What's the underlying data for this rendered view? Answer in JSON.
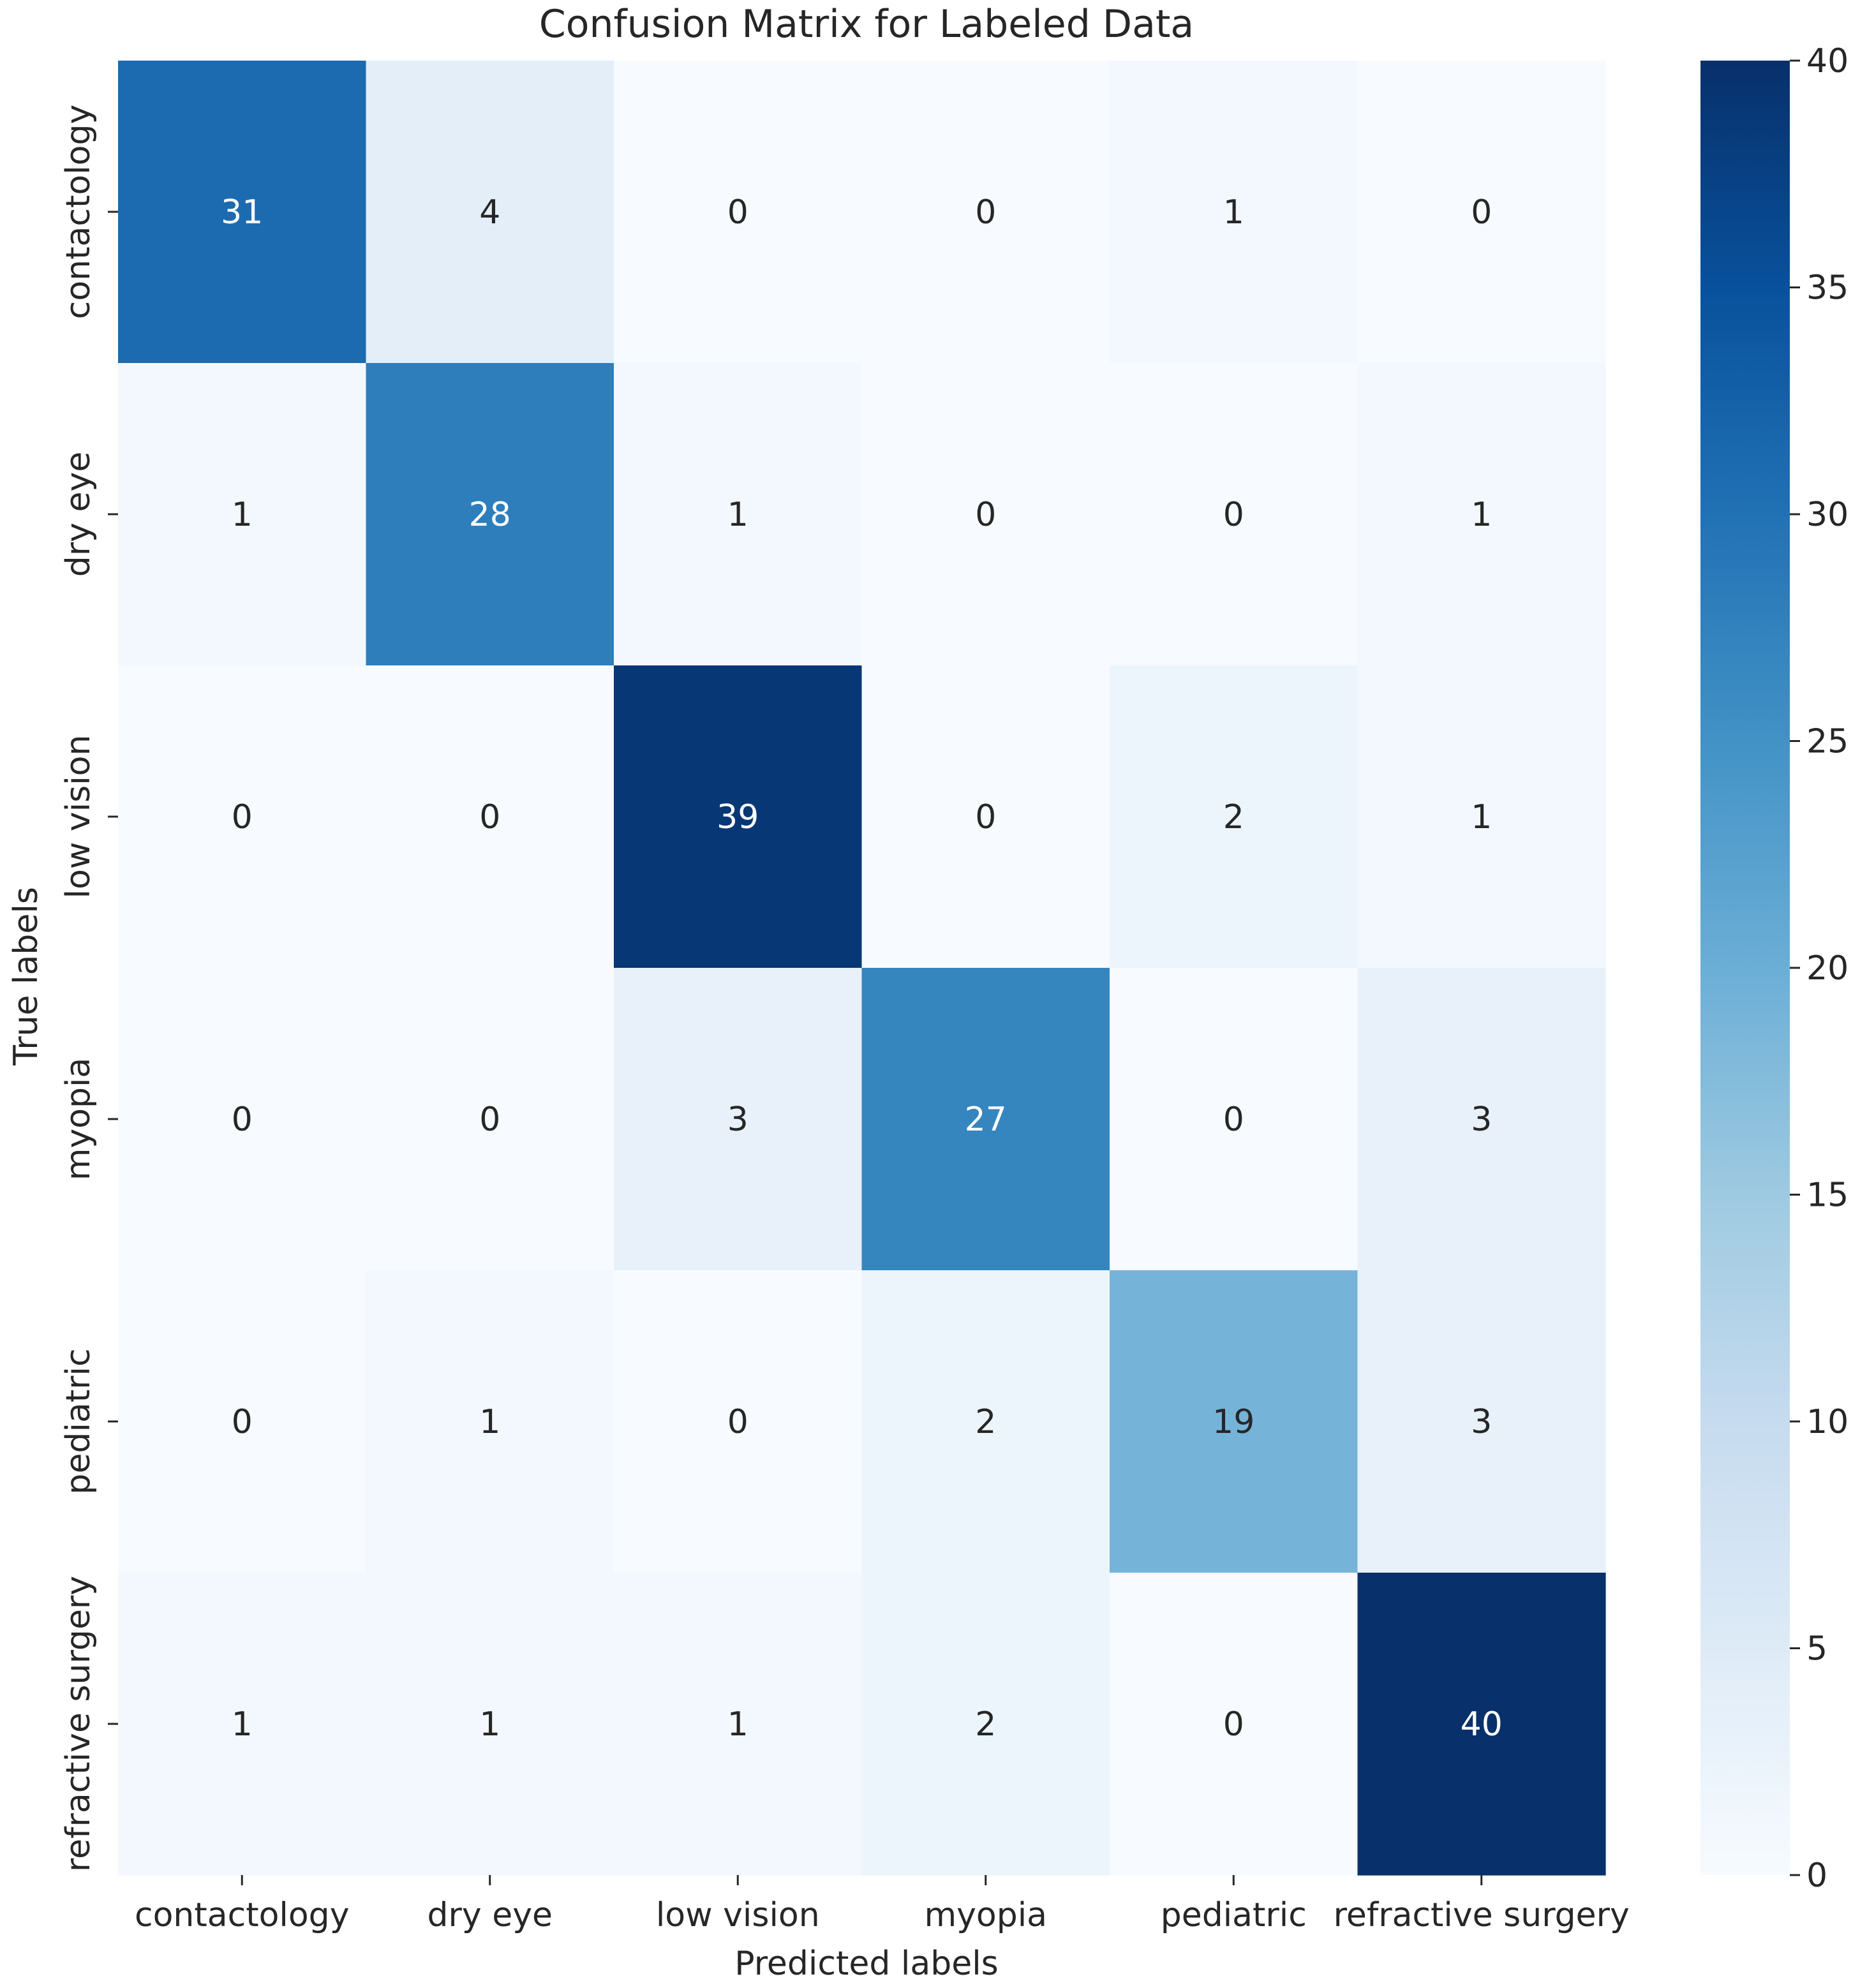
{
  "chart_data": {
    "type": "heatmap",
    "title": "Confusion Matrix for Labeled Data",
    "xlabel": "Predicted labels",
    "ylabel": "True labels",
    "x_categories": [
      "contactology",
      "dry eye",
      "low vision",
      "myopia",
      "pediatric",
      "refractive surgery"
    ],
    "y_categories": [
      "contactology",
      "dry eye",
      "low vision",
      "myopia",
      "pediatric",
      "refractive surgery"
    ],
    "matrix": [
      [
        31,
        4,
        0,
        0,
        1,
        0
      ],
      [
        1,
        28,
        1,
        0,
        0,
        1
      ],
      [
        0,
        0,
        39,
        0,
        2,
        1
      ],
      [
        0,
        0,
        3,
        27,
        0,
        3
      ],
      [
        0,
        1,
        0,
        2,
        19,
        3
      ],
      [
        1,
        1,
        1,
        2,
        0,
        40
      ]
    ],
    "colormap": "Blues",
    "vmin": 0,
    "vmax": 40,
    "colorbar_ticks": [
      0,
      5,
      10,
      15,
      20,
      25,
      30,
      35,
      40
    ],
    "colorbar_tick_labels": [
      "0",
      "5",
      "10",
      "15",
      "20",
      "25",
      "30",
      "35",
      "40"
    ],
    "colors": {
      "dark_text": "#262626",
      "light_text": "#ffffff",
      "axis": "#262626"
    }
  }
}
